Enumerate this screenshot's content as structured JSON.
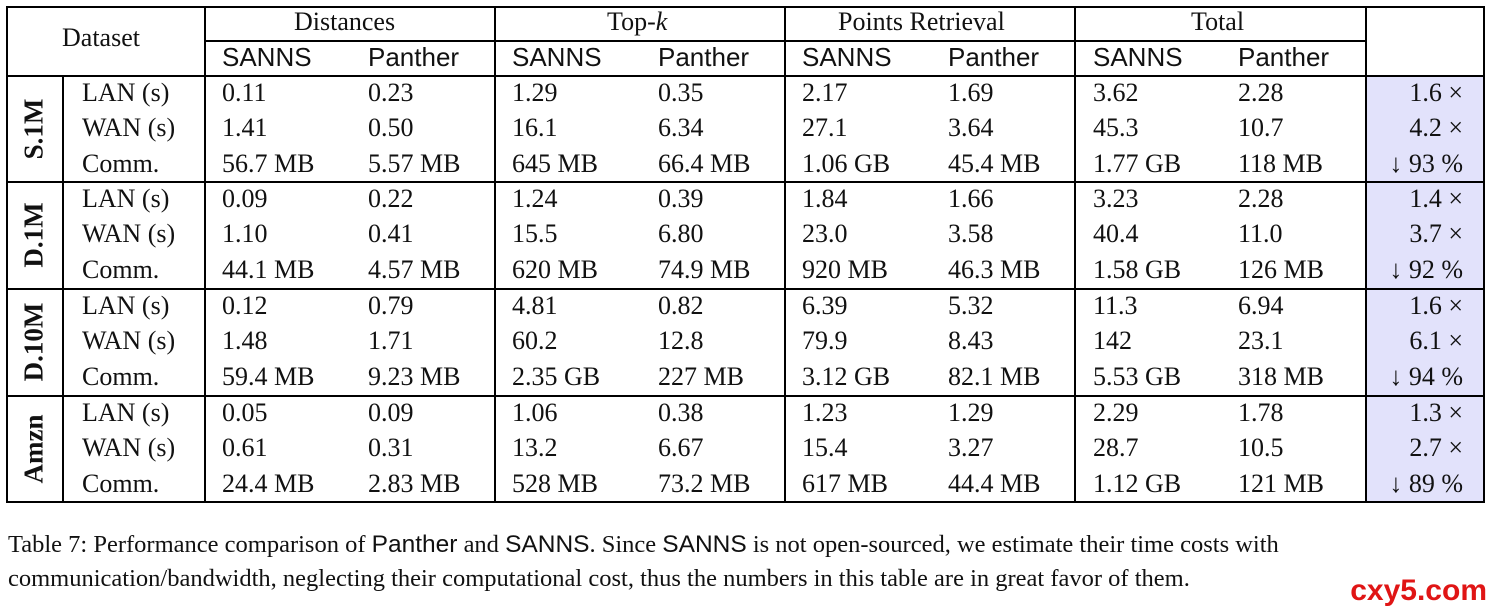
{
  "table": {
    "dataset_header": "Dataset",
    "groups": [
      "Distances",
      "Top-",
      "Points Retrieval",
      "Total"
    ],
    "topk_italic": "k",
    "sub_headers": [
      "SANNS",
      "Panther",
      "SANNS",
      "Panther",
      "SANNS",
      "Panther",
      "SANNS",
      "Panther"
    ],
    "datasets": [
      {
        "name": "S.1M",
        "rows": [
          {
            "label": "LAN (s)",
            "values": [
              "0.11",
              "0.23",
              "1.29",
              "0.35",
              "2.17",
              "1.69",
              "3.62",
              "2.28"
            ],
            "ratio": "1.6 ×"
          },
          {
            "label": "WAN (s)",
            "values": [
              "1.41",
              "0.50",
              "16.1",
              "6.34",
              "27.1",
              "3.64",
              "45.3",
              "10.7"
            ],
            "ratio": "4.2 ×"
          },
          {
            "label": "Comm.",
            "values": [
              "56.7 MB",
              "5.57 MB",
              "645 MB",
              "66.4 MB",
              "1.06 GB",
              "45.4 MB",
              "1.77 GB",
              "118 MB"
            ],
            "ratio": "↓ 93 %"
          }
        ]
      },
      {
        "name": "D.1M",
        "rows": [
          {
            "label": "LAN (s)",
            "values": [
              "0.09",
              "0.22",
              "1.24",
              "0.39",
              "1.84",
              "1.66",
              "3.23",
              "2.28"
            ],
            "ratio": "1.4 ×"
          },
          {
            "label": "WAN (s)",
            "values": [
              "1.10",
              "0.41",
              "15.5",
              "6.80",
              "23.0",
              "3.58",
              "40.4",
              "11.0"
            ],
            "ratio": "3.7 ×"
          },
          {
            "label": "Comm.",
            "values": [
              "44.1 MB",
              "4.57 MB",
              "620 MB",
              "74.9 MB",
              "920 MB",
              "46.3 MB",
              "1.58 GB",
              "126 MB"
            ],
            "ratio": "↓ 92 %"
          }
        ]
      },
      {
        "name": "D.10M",
        "rows": [
          {
            "label": "LAN (s)",
            "values": [
              "0.12",
              "0.79",
              "4.81",
              "0.82",
              "6.39",
              "5.32",
              "11.3",
              "6.94"
            ],
            "ratio": "1.6 ×"
          },
          {
            "label": "WAN (s)",
            "values": [
              "1.48",
              "1.71",
              "60.2",
              "12.8",
              "79.9",
              "8.43",
              "142",
              "23.1"
            ],
            "ratio": "6.1 ×"
          },
          {
            "label": "Comm.",
            "values": [
              "59.4 MB",
              "9.23 MB",
              "2.35 GB",
              "227 MB",
              "3.12 GB",
              "82.1 MB",
              "5.53 GB",
              "318 MB"
            ],
            "ratio": "↓ 94 %"
          }
        ]
      },
      {
        "name": "Amzn",
        "rows": [
          {
            "label": "LAN (s)",
            "values": [
              "0.05",
              "0.09",
              "1.06",
              "0.38",
              "1.23",
              "1.29",
              "2.29",
              "1.78"
            ],
            "ratio": "1.3 ×"
          },
          {
            "label": "WAN (s)",
            "values": [
              "0.61",
              "0.31",
              "13.2",
              "6.67",
              "15.4",
              "3.27",
              "28.7",
              "10.5"
            ],
            "ratio": "2.7 ×"
          },
          {
            "label": "Comm.",
            "values": [
              "24.4 MB",
              "2.83 MB",
              "528 MB",
              "73.2 MB",
              "617 MB",
              "44.4 MB",
              "1.12 GB",
              "121 MB"
            ],
            "ratio": "↓ 89 %"
          }
        ]
      }
    ]
  },
  "caption": {
    "p1": "Table 7: Performance comparison of ",
    "s1": "Panther",
    "p2": " and ",
    "s2": "SANNS",
    "p3": ". Since ",
    "s3": "SANNS",
    "p4": " is not open-sourced, we estimate their time costs with communication/bandwidth, neglecting their computational cost, thus the numbers in this table are in great favor of them."
  },
  "watermark": "cxy5.com"
}
